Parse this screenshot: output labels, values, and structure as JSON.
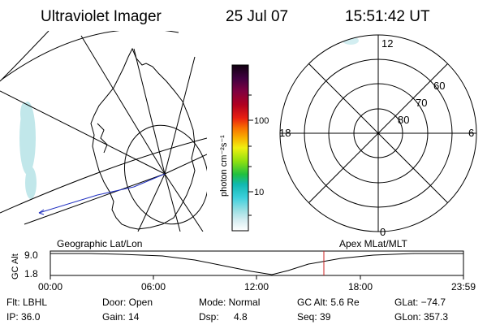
{
  "header": {
    "instrument": "Ultraviolet Imager",
    "date": "25 Jul 07",
    "time": "15:51:42 UT"
  },
  "colorbar": {
    "unit_label": "photon cm⁻²s⁻¹",
    "tick_100": "100",
    "tick_10": "10"
  },
  "polar_plot": {
    "mlt_top": "12",
    "mlt_left": "18",
    "mlt_right": "6",
    "mlt_bottom": "0",
    "lat_60": "60",
    "lat_70": "70",
    "lat_80": "80"
  },
  "panel_labels": {
    "left": "Geographic Lat/Lon",
    "right": "Apex MLat/MLT"
  },
  "altitude_plot": {
    "axis_label": "GC Alt",
    "y_top": "9.0",
    "y_bottom": "1.8",
    "x_ticks": [
      "00:00",
      "06:00",
      "12:00",
      "18:00",
      "23:59"
    ],
    "marker_color": "#cc2222"
  },
  "info": {
    "flt": "Flt: LBHL",
    "ip": "IP: 36.0",
    "door": "Door: Open",
    "gain": "Gain: 14",
    "mode": "Mode: Normal",
    "dsp_label": "Dsp:",
    "dsp_value": "4.8",
    "gc_alt": "GC Alt: 5.6 Re",
    "seq": "Seq: 39",
    "glat": "GLat: −74.7",
    "glon": "GLon: 357.3"
  }
}
